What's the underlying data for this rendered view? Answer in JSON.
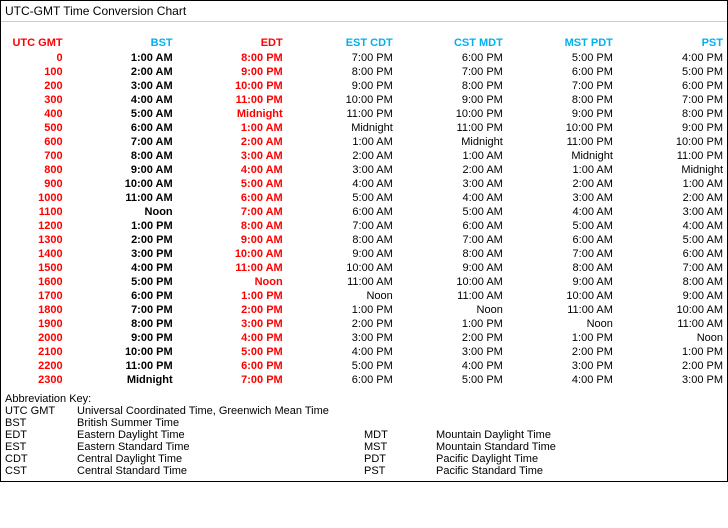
{
  "title": "UTC-GMT Time Conversion Chart",
  "colors": {
    "red": "#ff0000",
    "blue": "#00b0f0",
    "black": "#000000",
    "border": "#000000",
    "bg": "#ffffff"
  },
  "font": {
    "family": "Arial",
    "size_pt": 11,
    "header_size_pt": 11,
    "title_size_pt": 12
  },
  "columns": [
    {
      "label": "UTC GMT",
      "color": "red"
    },
    {
      "label": "BST",
      "color": "blue"
    },
    {
      "label": "EDT",
      "color": "red"
    },
    {
      "label": "EST CDT",
      "color": "blue"
    },
    {
      "label": "CST MDT",
      "color": "blue"
    },
    {
      "label": "MST PDT",
      "color": "blue"
    },
    {
      "label": "PST",
      "color": "blue"
    }
  ],
  "col_styles": [
    "red",
    "black",
    "red",
    "plain",
    "plain",
    "plain",
    "plain"
  ],
  "rows": [
    [
      "0",
      "1:00 AM",
      "8:00 PM",
      "7:00 PM",
      "6:00 PM",
      "5:00 PM",
      "4:00 PM"
    ],
    [
      "100",
      "2:00 AM",
      "9:00 PM",
      "8:00 PM",
      "7:00 PM",
      "6:00 PM",
      "5:00 PM"
    ],
    [
      "200",
      "3:00 AM",
      "10:00 PM",
      "9:00 PM",
      "8:00 PM",
      "7:00 PM",
      "6:00 PM"
    ],
    [
      "300",
      "4:00 AM",
      "11:00 PM",
      "10:00 PM",
      "9:00 PM",
      "8:00 PM",
      "7:00 PM"
    ],
    [
      "400",
      "5:00 AM",
      "Midnight",
      "11:00 PM",
      "10:00 PM",
      "9:00 PM",
      "8:00 PM"
    ],
    [
      "500",
      "6:00 AM",
      "1:00 AM",
      "Midnight",
      "11:00 PM",
      "10:00 PM",
      "9:00 PM"
    ],
    [
      "600",
      "7:00 AM",
      "2:00 AM",
      "1:00 AM",
      "Midnight",
      "11:00 PM",
      "10:00 PM"
    ],
    [
      "700",
      "8:00 AM",
      "3:00 AM",
      "2:00 AM",
      "1:00 AM",
      "Midnight",
      "11:00 PM"
    ],
    [
      "800",
      "9:00 AM",
      "4:00 AM",
      "3:00 AM",
      "2:00 AM",
      "1:00 AM",
      "Midnight"
    ],
    [
      "900",
      "10:00 AM",
      "5:00 AM",
      "4:00 AM",
      "3:00 AM",
      "2:00 AM",
      "1:00 AM"
    ],
    [
      "1000",
      "11:00 AM",
      "6:00 AM",
      "5:00 AM",
      "4:00 AM",
      "3:00 AM",
      "2:00 AM"
    ],
    [
      "1100",
      "Noon",
      "7:00 AM",
      "6:00 AM",
      "5:00 AM",
      "4:00 AM",
      "3:00 AM"
    ],
    [
      "1200",
      "1:00 PM",
      "8:00 AM",
      "7:00 AM",
      "6:00 AM",
      "5:00 AM",
      "4:00 AM"
    ],
    [
      "1300",
      "2:00 PM",
      "9:00 AM",
      "8:00 AM",
      "7:00 AM",
      "6:00 AM",
      "5:00 AM"
    ],
    [
      "1400",
      "3:00 PM",
      "10:00 AM",
      "9:00 AM",
      "8:00 AM",
      "7:00 AM",
      "6:00 AM"
    ],
    [
      "1500",
      "4:00 PM",
      "11:00 AM",
      "10:00 AM",
      "9:00 AM",
      "8:00 AM",
      "7:00 AM"
    ],
    [
      "1600",
      "5:00 PM",
      "Noon",
      "11:00 AM",
      "10:00 AM",
      "9:00 AM",
      "8:00 AM"
    ],
    [
      "1700",
      "6:00 PM",
      "1:00 PM",
      "Noon",
      "11:00 AM",
      "10:00 AM",
      "9:00 AM"
    ],
    [
      "1800",
      "7:00 PM",
      "2:00 PM",
      "1:00 PM",
      "Noon",
      "11:00 AM",
      "10:00 AM"
    ],
    [
      "1900",
      "8:00 PM",
      "3:00 PM",
      "2:00 PM",
      "1:00 PM",
      "Noon",
      "11:00 AM"
    ],
    [
      "2000",
      "9:00 PM",
      "4:00 PM",
      "3:00 PM",
      "2:00 PM",
      "1:00 PM",
      "Noon"
    ],
    [
      "2100",
      "10:00 PM",
      "5:00 PM",
      "4:00 PM",
      "3:00 PM",
      "2:00 PM",
      "1:00 PM"
    ],
    [
      "2200",
      "11:00 PM",
      "6:00 PM",
      "5:00 PM",
      "4:00 PM",
      "3:00 PM",
      "2:00 PM"
    ],
    [
      "2300",
      "Midnight",
      "7:00 PM",
      "6:00 PM",
      "5:00 PM",
      "4:00 PM",
      "3:00 PM"
    ]
  ],
  "key": {
    "title": "Abbreviation Key:",
    "full": [
      {
        "abbr": "UTC GMT",
        "def": "Universal Coordinated Time, Greenwich Mean Time"
      },
      {
        "abbr": "BST",
        "def": "British Summer Time"
      }
    ],
    "left": [
      {
        "abbr": "EDT",
        "def": "Eastern Daylight Time"
      },
      {
        "abbr": "EST",
        "def": "Eastern Standard Time"
      },
      {
        "abbr": "CDT",
        "def": "Central Daylight Time"
      },
      {
        "abbr": "CST",
        "def": "Central Standard Time"
      }
    ],
    "right": [
      {
        "abbr": "MDT",
        "def": "Mountain Daylight Time"
      },
      {
        "abbr": "MST",
        "def": "Mountain Standard Time"
      },
      {
        "abbr": "PDT",
        "def": "Pacific Daylight Time"
      },
      {
        "abbr": "PST",
        "def": "Pacific Standard Time"
      }
    ]
  }
}
